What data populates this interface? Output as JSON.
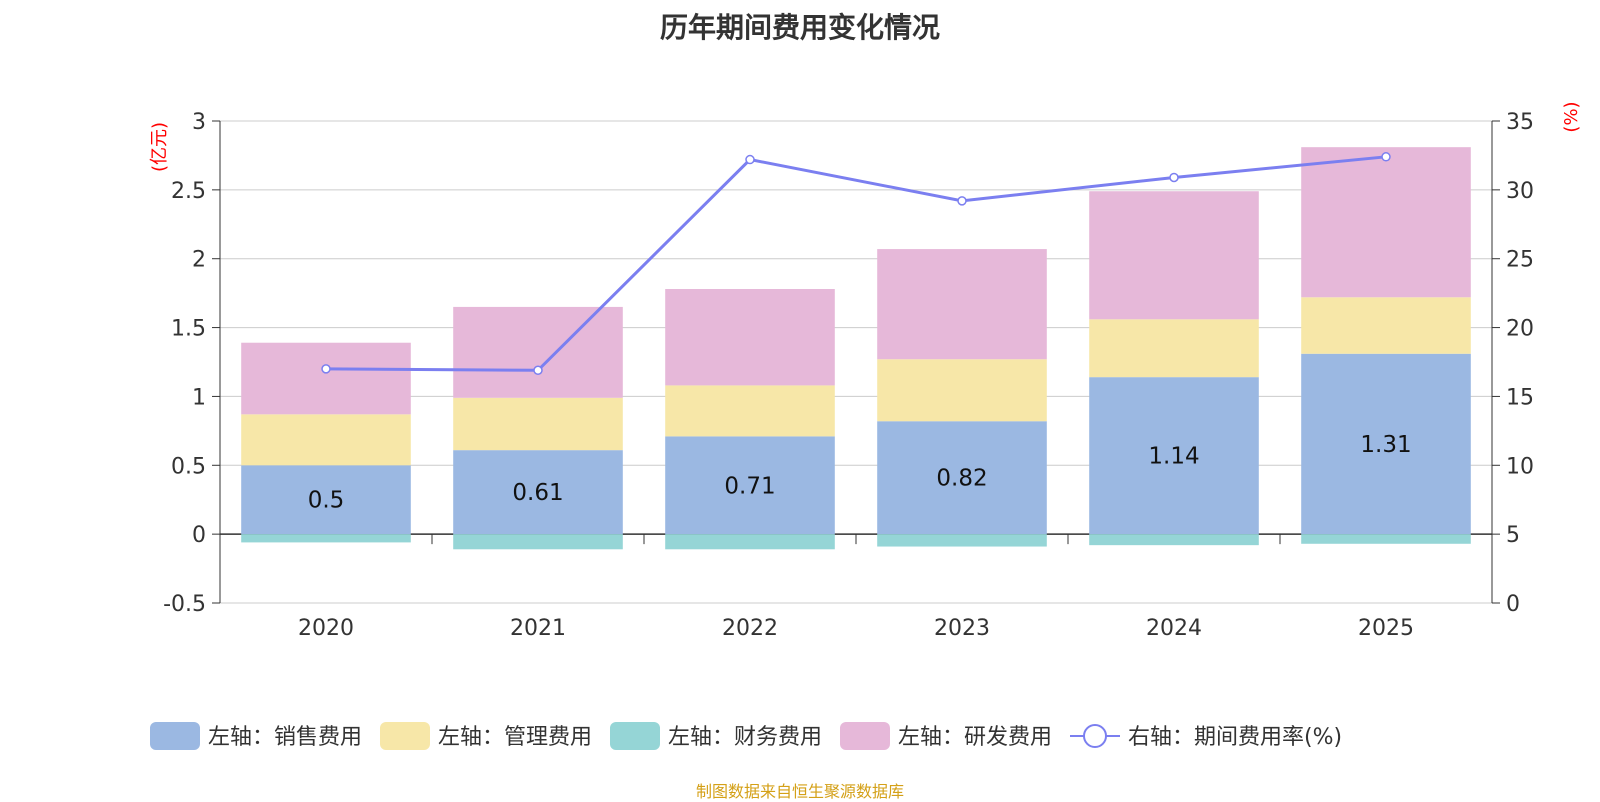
{
  "chart_data": {
    "type": "bar",
    "title": "历年期间费用变化情况",
    "categories": [
      "2020",
      "2021",
      "2022",
      "2023",
      "2024",
      "2025"
    ],
    "left_axis": {
      "unit_label": "(亿元)",
      "ylim": [
        -0.5,
        3
      ],
      "ticks": [
        -0.5,
        0,
        0.5,
        1,
        1.5,
        2,
        2.5,
        3
      ]
    },
    "right_axis": {
      "unit_label": "(%)",
      "ylim": [
        0,
        35
      ],
      "ticks": [
        0,
        5,
        10,
        15,
        20,
        25,
        30,
        35
      ]
    },
    "series": [
      {
        "name": "左轴：销售费用",
        "kind": "bar",
        "axis": "left",
        "stack": "pos",
        "color": "#9bb8e2",
        "values": [
          0.5,
          0.61,
          0.71,
          0.82,
          1.14,
          1.31
        ],
        "show_labels": true
      },
      {
        "name": "左轴：管理费用",
        "kind": "bar",
        "axis": "left",
        "stack": "pos",
        "color": "#f7e7a8",
        "values": [
          0.37,
          0.38,
          0.37,
          0.45,
          0.42,
          0.41
        ],
        "show_labels": false
      },
      {
        "name": "左轴：财务费用",
        "kind": "bar",
        "axis": "left",
        "stack": "neg",
        "color": "#95d5d6",
        "values": [
          -0.06,
          -0.11,
          -0.11,
          -0.09,
          -0.08,
          -0.07
        ],
        "show_labels": false
      },
      {
        "name": "左轴：研发费用",
        "kind": "bar",
        "axis": "left",
        "stack": "pos",
        "color": "#e6b8d9",
        "values": [
          0.52,
          0.66,
          0.7,
          0.8,
          0.93,
          1.09
        ],
        "show_labels": false
      },
      {
        "name": "右轴：期间费用率(%)",
        "kind": "line",
        "axis": "right",
        "color": "#7b7ff0",
        "values": [
          17.0,
          16.9,
          32.2,
          29.2,
          30.9,
          32.4
        ]
      }
    ],
    "legend": "bottom",
    "grid": true
  },
  "footer": {
    "source": "制图数据来自恒生聚源数据库"
  }
}
